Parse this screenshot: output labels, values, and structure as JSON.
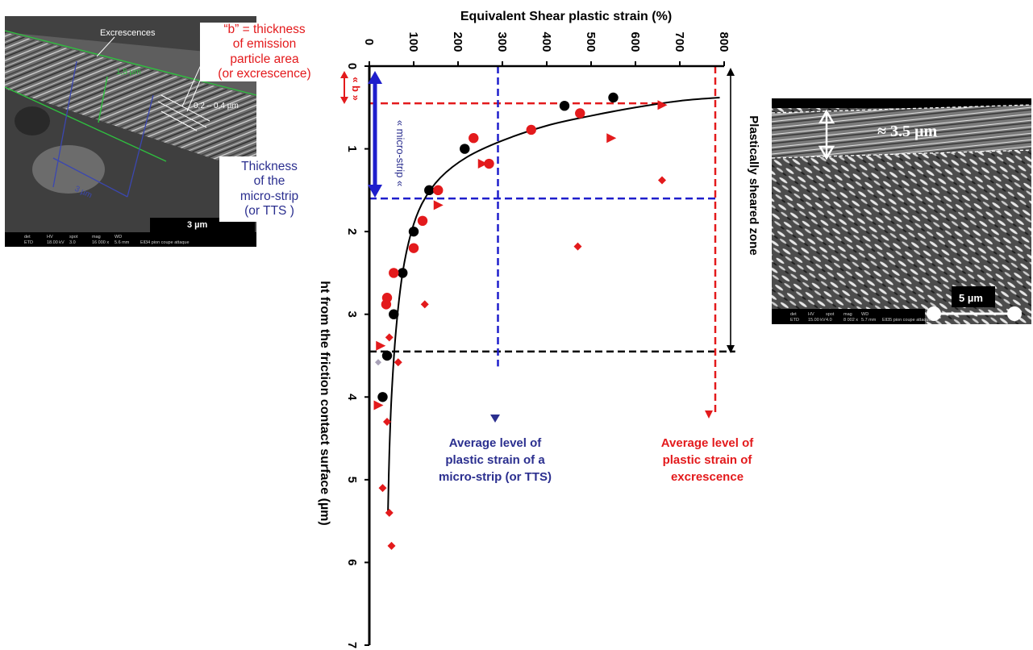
{
  "chart_data": {
    "type": "scatter",
    "orientation": "rotated",
    "title": "Equivalent Shear plastic strain (%)",
    "xlabel": "Equivalent Shear plastic strain (%)",
    "ylabel": "ht from the friction contact surface (µm)",
    "xlim": [
      0,
      800
    ],
    "ylim": [
      0,
      7
    ],
    "x_ticks": [
      "0",
      "100",
      "200",
      "300",
      "400",
      "500",
      "600",
      "700",
      "800"
    ],
    "y_ticks": [
      "0",
      "1",
      "2",
      "3",
      "4",
      "5",
      "6",
      "7"
    ],
    "x_tick_values": [
      0,
      100,
      200,
      300,
      400,
      500,
      600,
      700,
      800
    ],
    "y_tick_values": [
      0,
      1,
      2,
      3,
      4,
      5,
      6,
      7
    ],
    "colors": {
      "black": "#000000",
      "red": "#e31a1c",
      "blue": "#1e1ecc",
      "navy": "#2b2f8f",
      "gray": "#a9a2b8"
    },
    "series": [
      {
        "marker": "circle",
        "color": "#000000",
        "points": [
          [
            550,
            0.38
          ],
          [
            440,
            0.48
          ],
          [
            215,
            1.0
          ],
          [
            135,
            1.5
          ],
          [
            100,
            2.0
          ],
          [
            75,
            2.5
          ],
          [
            55,
            3.0
          ],
          [
            40,
            3.5
          ],
          [
            30,
            4.0
          ]
        ]
      },
      {
        "marker": "circle",
        "color": "#e31a1c",
        "points": [
          [
            475,
            0.57
          ],
          [
            365,
            0.77
          ],
          [
            235,
            0.87
          ],
          [
            270,
            1.18
          ],
          [
            155,
            1.5
          ],
          [
            120,
            1.87
          ],
          [
            100,
            2.2
          ],
          [
            55,
            2.5
          ],
          [
            40,
            2.8
          ],
          [
            38,
            2.88
          ]
        ]
      },
      {
        "marker": "triangle",
        "color": "#e31a1c",
        "points": [
          [
            660,
            0.47
          ],
          [
            545,
            0.87
          ],
          [
            255,
            1.18
          ],
          [
            155,
            1.68
          ],
          [
            25,
            3.38
          ],
          [
            20,
            4.1
          ]
        ]
      },
      {
        "marker": "diamond",
        "color": "#e31a1c",
        "points": [
          [
            660,
            1.38
          ],
          [
            470,
            2.18
          ],
          [
            125,
            2.88
          ],
          [
            45,
            3.28
          ],
          [
            65,
            3.58
          ],
          [
            40,
            4.3
          ],
          [
            30,
            5.1
          ],
          [
            45,
            5.4
          ],
          [
            50,
            5.8
          ]
        ]
      },
      {
        "marker": "diamond",
        "color": "#a9a2b8",
        "points": [
          [
            20,
            3.58
          ]
        ]
      }
    ],
    "fit_curve": [
      [
        790,
        0.38
      ],
      [
        700,
        0.42
      ],
      [
        600,
        0.5
      ],
      [
        500,
        0.6
      ],
      [
        400,
        0.72
      ],
      [
        300,
        0.9
      ],
      [
        220,
        1.1
      ],
      [
        160,
        1.35
      ],
      [
        120,
        1.65
      ],
      [
        95,
        2.0
      ],
      [
        75,
        2.5
      ],
      [
        60,
        3.2
      ],
      [
        50,
        4.0
      ],
      [
        45,
        4.7
      ],
      [
        42,
        5.4
      ]
    ],
    "reference_lines": [
      {
        "axis": "y",
        "value": 0.45,
        "color": "#e31a1c",
        "x_to": 660
      },
      {
        "axis": "y",
        "value": 1.6,
        "color": "#1e1ecc",
        "x_to": 780
      },
      {
        "axis": "y",
        "value": 3.45,
        "color": "#000000",
        "x_to": 825
      },
      {
        "axis": "x",
        "value": 290,
        "color": "#1e1ecc",
        "y_from": 0,
        "y_to": 3.63
      },
      {
        "axis": "x",
        "value": 780,
        "color": "#e31a1c",
        "y_from": 0,
        "y_to": 4.2
      }
    ],
    "annotations": {
      "b_label": "« b »",
      "micro_strip_label": "« micro-strip «",
      "plastically_sheared_zone": "Plastically sheared zone",
      "avg_microstrip": [
        "Average level of",
        "plastic strain of a",
        "micro-strip (or TTS)"
      ],
      "avg_excrescence": [
        "Average level of",
        "plastic strain of",
        "excrescence"
      ]
    }
  },
  "left_panel": {
    "b_note": [
      "“b” = thickness",
      "of  emission",
      "particle area",
      "(or excrescence)"
    ],
    "thickness_note": [
      "Thickness",
      "of the",
      "micro-strip",
      "(or  TTS )"
    ],
    "sem_labels": {
      "excrescences": "Excrescences",
      "dim_15": "1,5 µm",
      "dim_02": "0,2 – 0,4 µm",
      "dim_3": "3 µm",
      "scalebar": "3 µm",
      "info_headers": [
        "det",
        "HV",
        "spot",
        "mag",
        "WD"
      ],
      "info_values": [
        "ETD",
        "18.00 kV",
        "3.0",
        "16 000 x",
        "5.6 mm"
      ],
      "info_name": "Ell34 pion coupe attaque"
    }
  },
  "right_panel": {
    "sem_labels": {
      "thickness": "≈ 3.5 µm",
      "scalebar": "5 µm",
      "info_headers": [
        "det",
        "HV",
        "spot",
        "mag",
        "WD"
      ],
      "info_values": [
        "ETD",
        "15.00 kV",
        "4.0",
        "8 002 x",
        "5.7 mm"
      ],
      "info_name": "Ell35 pion coupe attaque"
    }
  }
}
